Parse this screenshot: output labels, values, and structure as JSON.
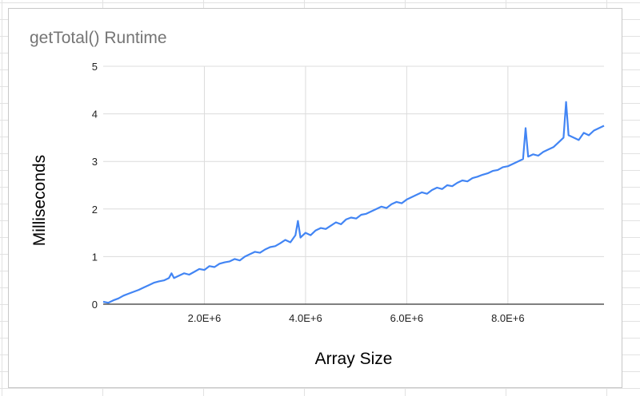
{
  "chart_data": {
    "type": "line",
    "title": "getTotal() Runtime",
    "xlabel": "Array Size",
    "ylabel": "Milliseconds",
    "xlim": [
      0,
      9900000
    ],
    "ylim": [
      0,
      5
    ],
    "x_ticks": [
      2000000,
      4000000,
      6000000,
      8000000
    ],
    "x_tick_labels": [
      "2.0E+6",
      "4.0E+6",
      "6.0E+6",
      "8.0E+6"
    ],
    "y_ticks": [
      0,
      1,
      2,
      3,
      4,
      5
    ],
    "y_tick_labels": [
      "0",
      "1",
      "2",
      "3",
      "4",
      "5"
    ],
    "grid": true,
    "legend": "none",
    "series": [
      {
        "color": "#4285f4",
        "x": [
          0,
          100000,
          200000,
          300000,
          400000,
          500000,
          600000,
          700000,
          800000,
          900000,
          1000000,
          1100000,
          1200000,
          1300000,
          1350000,
          1400000,
          1500000,
          1600000,
          1700000,
          1800000,
          1900000,
          2000000,
          2100000,
          2200000,
          2300000,
          2400000,
          2500000,
          2600000,
          2700000,
          2800000,
          2900000,
          3000000,
          3100000,
          3200000,
          3300000,
          3400000,
          3500000,
          3600000,
          3700000,
          3800000,
          3850000,
          3900000,
          4000000,
          4100000,
          4200000,
          4300000,
          4400000,
          4500000,
          4600000,
          4700000,
          4800000,
          4900000,
          5000000,
          5100000,
          5200000,
          5300000,
          5400000,
          5500000,
          5600000,
          5700000,
          5800000,
          5900000,
          6000000,
          6100000,
          6200000,
          6300000,
          6400000,
          6500000,
          6600000,
          6700000,
          6800000,
          6900000,
          7000000,
          7100000,
          7200000,
          7300000,
          7400000,
          7500000,
          7600000,
          7700000,
          7800000,
          7900000,
          8000000,
          8100000,
          8200000,
          8300000,
          8350000,
          8400000,
          8500000,
          8600000,
          8700000,
          8800000,
          8900000,
          9000000,
          9100000,
          9150000,
          9200000,
          9300000,
          9400000,
          9500000,
          9600000,
          9700000,
          9800000,
          9900000
        ],
        "y": [
          0.05,
          0.03,
          0.08,
          0.12,
          0.18,
          0.22,
          0.26,
          0.3,
          0.35,
          0.4,
          0.45,
          0.48,
          0.5,
          0.55,
          0.65,
          0.55,
          0.6,
          0.65,
          0.62,
          0.68,
          0.74,
          0.72,
          0.8,
          0.78,
          0.85,
          0.88,
          0.9,
          0.95,
          0.92,
          1.0,
          1.05,
          1.1,
          1.08,
          1.15,
          1.2,
          1.22,
          1.28,
          1.35,
          1.3,
          1.45,
          1.75,
          1.4,
          1.5,
          1.45,
          1.55,
          1.6,
          1.58,
          1.65,
          1.72,
          1.68,
          1.78,
          1.82,
          1.8,
          1.88,
          1.9,
          1.95,
          2.0,
          2.05,
          2.02,
          2.1,
          2.15,
          2.12,
          2.2,
          2.25,
          2.3,
          2.35,
          2.32,
          2.4,
          2.45,
          2.42,
          2.5,
          2.48,
          2.55,
          2.6,
          2.58,
          2.65,
          2.68,
          2.72,
          2.75,
          2.8,
          2.82,
          2.88,
          2.9,
          2.95,
          3.0,
          3.05,
          3.7,
          3.1,
          3.15,
          3.12,
          3.2,
          3.25,
          3.3,
          3.4,
          3.5,
          4.25,
          3.55,
          3.5,
          3.45,
          3.6,
          3.55,
          3.65,
          3.7,
          3.75
        ]
      }
    ]
  }
}
